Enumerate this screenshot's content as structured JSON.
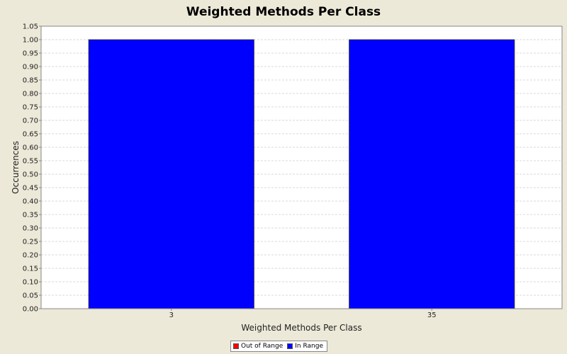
{
  "chart_data": {
    "type": "bar",
    "title": "Weighted Methods Per Class",
    "xlabel": "Weighted Methods Per Class",
    "ylabel": "Occurrences",
    "categories": [
      "3",
      "35"
    ],
    "series": [
      {
        "name": "In Range",
        "values": [
          1.0,
          1.0
        ],
        "color": "#0000ff"
      }
    ],
    "ylim": [
      0,
      1.05
    ],
    "yticks": [
      "0.00",
      "0.05",
      "0.10",
      "0.15",
      "0.20",
      "0.25",
      "0.30",
      "0.35",
      "0.40",
      "0.45",
      "0.50",
      "0.55",
      "0.60",
      "0.65",
      "0.70",
      "0.75",
      "0.80",
      "0.85",
      "0.90",
      "0.95",
      "1.00",
      "1.05"
    ],
    "grid": true,
    "legend": {
      "placement": "bottom",
      "entries": [
        {
          "label": "Out of Range",
          "color": "#ff0000"
        },
        {
          "label": "In Range",
          "color": "#0000ff"
        }
      ]
    }
  }
}
